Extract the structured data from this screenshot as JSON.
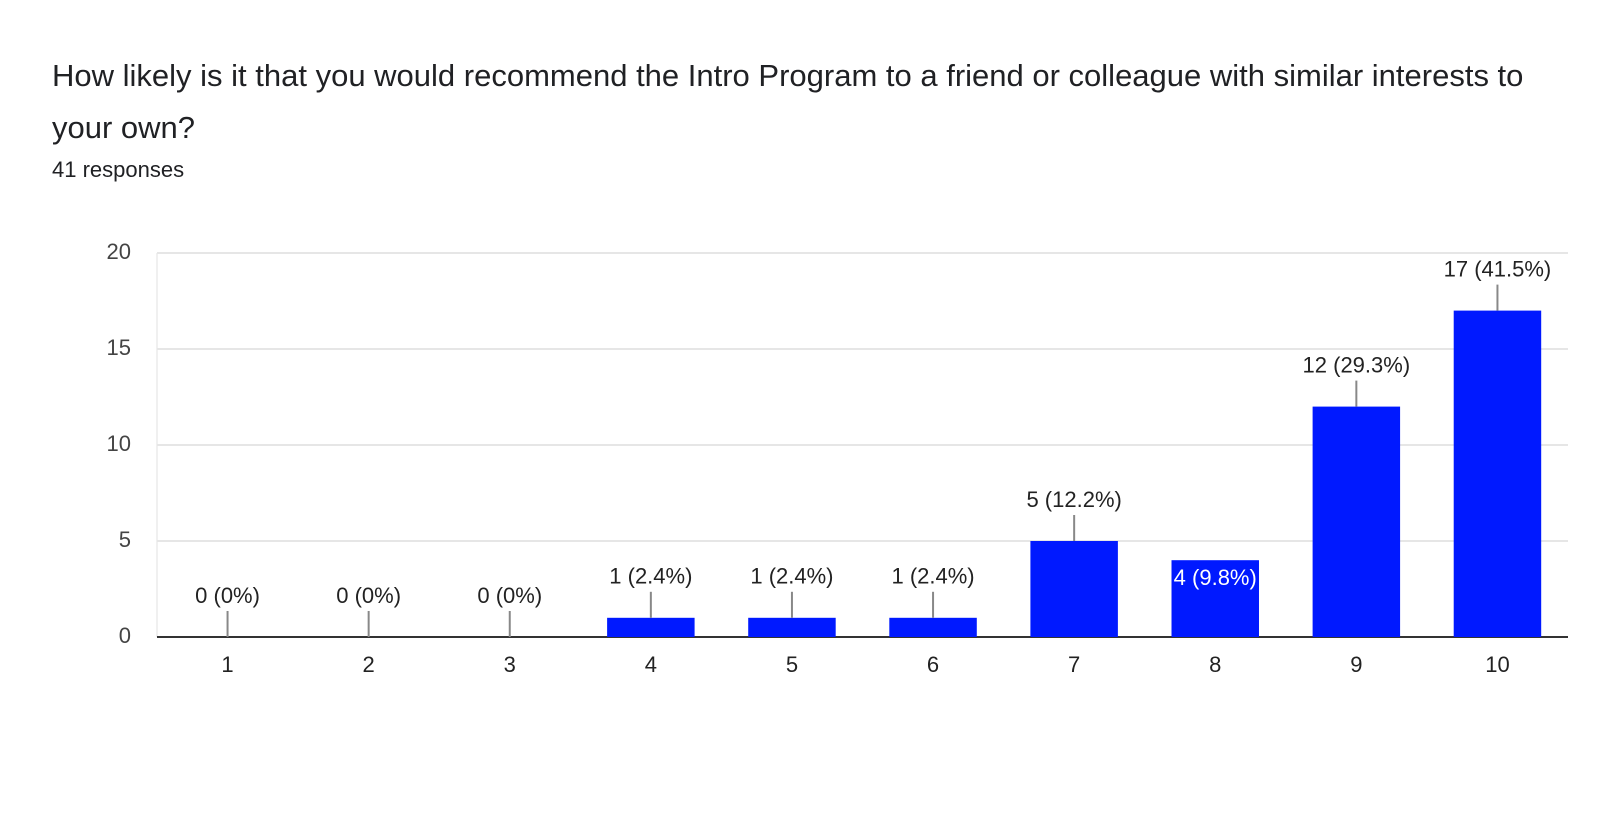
{
  "chart_data": {
    "type": "bar",
    "title": "How likely is it that you would recommend the Intro Program to a friend or colleague with similar interests to your own?",
    "subtitle": "41 responses",
    "categories": [
      "1",
      "2",
      "3",
      "4",
      "5",
      "6",
      "7",
      "8",
      "9",
      "10"
    ],
    "values": [
      0,
      0,
      0,
      1,
      1,
      1,
      5,
      4,
      12,
      17
    ],
    "value_labels": [
      "0 (0%)",
      "0 (0%)",
      "0 (0%)",
      "1 (2.4%)",
      "1 (2.4%)",
      "1 (2.4%)",
      "5 (12.2%)",
      "4 (9.8%)",
      "12 (29.3%)",
      "17 (41.5%)"
    ],
    "color": "#0019ff",
    "ylim": [
      0,
      20
    ],
    "yticks": [
      0,
      5,
      10,
      15,
      20
    ],
    "grid": true
  }
}
